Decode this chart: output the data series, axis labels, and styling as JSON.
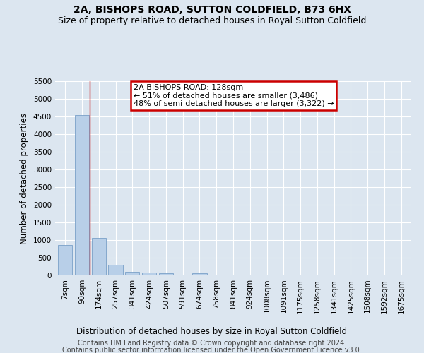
{
  "title": "2A, BISHOPS ROAD, SUTTON COLDFIELD, B73 6HX",
  "subtitle": "Size of property relative to detached houses in Royal Sutton Coldfield",
  "xlabel": "Distribution of detached houses by size in Royal Sutton Coldfield",
  "ylabel": "Number of detached properties",
  "footer_line1": "Contains HM Land Registry data © Crown copyright and database right 2024.",
  "footer_line2": "Contains public sector information licensed under the Open Government Licence v3.0.",
  "categories": [
    "7sqm",
    "90sqm",
    "174sqm",
    "257sqm",
    "341sqm",
    "424sqm",
    "507sqm",
    "591sqm",
    "674sqm",
    "758sqm",
    "841sqm",
    "924sqm",
    "1008sqm",
    "1091sqm",
    "1175sqm",
    "1258sqm",
    "1341sqm",
    "1425sqm",
    "1508sqm",
    "1592sqm",
    "1675sqm"
  ],
  "values": [
    870,
    4550,
    1070,
    300,
    100,
    80,
    70,
    0,
    70,
    0,
    0,
    0,
    0,
    0,
    0,
    0,
    0,
    0,
    0,
    0,
    0
  ],
  "bar_color": "#b8cfe8",
  "bar_edge_color": "#7aa0c8",
  "annotation_text_line1": "2A BISHOPS ROAD: 128sqm",
  "annotation_text_line2": "← 51% of detached houses are smaller (3,486)",
  "annotation_text_line3": "48% of semi-detached houses are larger (3,322) →",
  "annotation_box_color": "#ffffff",
  "annotation_box_edge_color": "#cc0000",
  "red_line_color": "#cc0000",
  "ylim": [
    0,
    5500
  ],
  "yticks": [
    0,
    500,
    1000,
    1500,
    2000,
    2500,
    3000,
    3500,
    4000,
    4500,
    5000,
    5500
  ],
  "bg_color": "#dce6f0",
  "plot_bg_color": "#dce6f0",
  "grid_color": "#ffffff",
  "title_fontsize": 10,
  "subtitle_fontsize": 9,
  "axis_label_fontsize": 8.5,
  "tick_fontsize": 7.5,
  "annotation_fontsize": 8,
  "footer_fontsize": 7
}
